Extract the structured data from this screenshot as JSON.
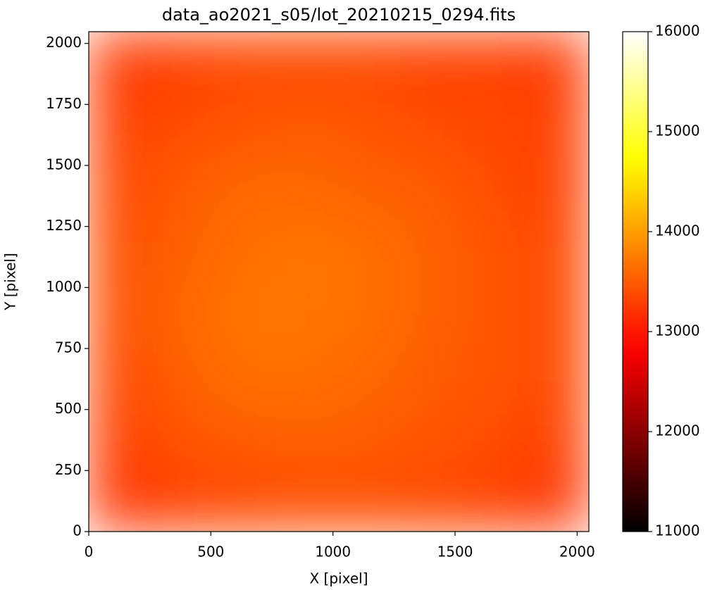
{
  "chart_data": {
    "type": "image",
    "title": "data_ao2021_s05/lot_20210215_0294.fits",
    "x_label": "X [pixel]",
    "y_label": "Y [pixel]",
    "xlim": [
      0,
      2048
    ],
    "ylim": [
      0,
      2048
    ],
    "xticks": [
      0,
      500,
      1000,
      1500,
      2000
    ],
    "yticks": [
      0,
      250,
      500,
      750,
      1000,
      1250,
      1500,
      1750,
      2000
    ],
    "colormap": "hot",
    "clim": [
      11000,
      16000
    ],
    "cticks": [
      11000,
      12000,
      13000,
      14000,
      15000,
      16000
    ],
    "z": [
      [
        13200,
        13300,
        13350,
        13400,
        13400,
        13350,
        13300,
        13200
      ],
      [
        13300,
        13450,
        13500,
        13550,
        13500,
        13450,
        13400,
        13300
      ],
      [
        13350,
        13550,
        13650,
        13650,
        13600,
        13500,
        13450,
        13350
      ],
      [
        13400,
        13600,
        13700,
        13700,
        13650,
        13550,
        13450,
        13350
      ],
      [
        13400,
        13550,
        13650,
        13700,
        13650,
        13550,
        13450,
        13350
      ],
      [
        13350,
        13500,
        13600,
        13600,
        13550,
        13500,
        13400,
        13300
      ],
      [
        13300,
        13400,
        13450,
        13500,
        13450,
        13400,
        13350,
        13300
      ],
      [
        13250,
        13300,
        13350,
        13350,
        13350,
        13300,
        13300,
        13250
      ]
    ]
  }
}
